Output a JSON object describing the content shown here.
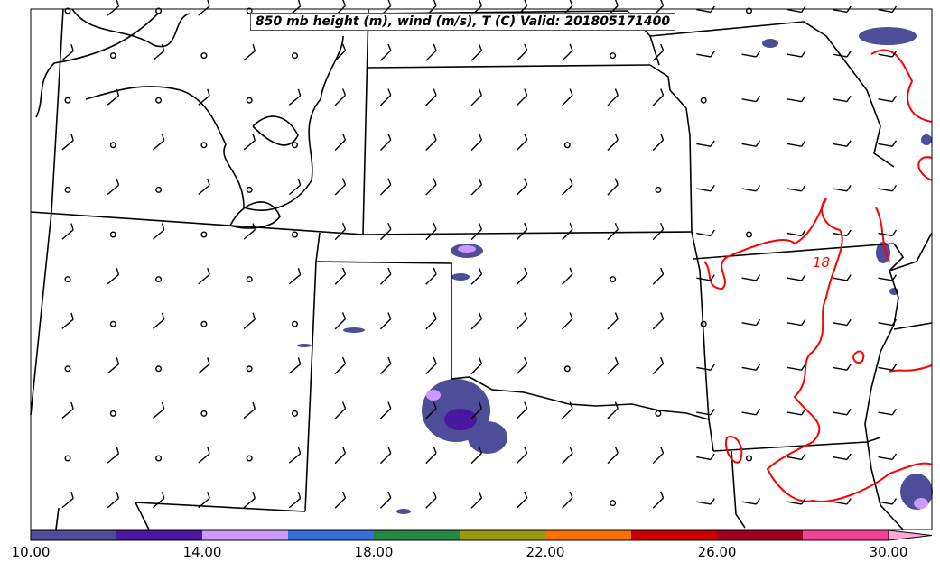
{
  "title": "850 mb height (m), wind (m/s), T (C) Valid: 201805171400",
  "contour_label": "18",
  "colorbar": {
    "colors": [
      "#4d4d99",
      "#4b16a0",
      "#cc99ff",
      "#3370dd",
      "#228844",
      "#999911",
      "#ff7000",
      "#cc0000",
      "#a00020",
      "#f54299"
    ],
    "extend_color": "#f9a8d8",
    "min": 10,
    "max": 30,
    "ticks": [
      "10.00",
      "14.00",
      "18.00",
      "22.00",
      "26.00",
      "30.00"
    ]
  },
  "colors": {
    "temperature_contour": "#ff0000",
    "boundaries": "#000000"
  }
}
